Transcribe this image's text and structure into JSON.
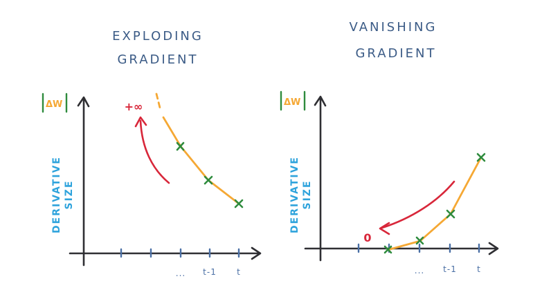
{
  "panels": {
    "exploding": {
      "title_line1": "EXPLODING",
      "title_line2": "GRADIENT",
      "y_magnitude": "ΔW",
      "y_label_line1": "DERIVATIVE",
      "y_label_line2": "SIZE",
      "limit_text": "+∞",
      "tick_labels": [
        "...",
        "t-1",
        "t"
      ]
    },
    "vanishing": {
      "title_line1": "VANISHING",
      "title_line2": "GRADIENT",
      "y_magnitude": "ΔW",
      "y_label_line1": "DERIVATIVE",
      "y_label_line2": "SIZE",
      "limit_text": "0",
      "tick_labels": [
        "...",
        "t-1",
        "t"
      ]
    }
  },
  "colors": {
    "title": "#3b5b86",
    "axis": "#2f2f33",
    "curve": "#f5a834",
    "marker": "#2e8b3d",
    "arrow": "#d8273a",
    "ylabel": "#2ea3dc",
    "ticks": "#4a6fa5"
  }
}
